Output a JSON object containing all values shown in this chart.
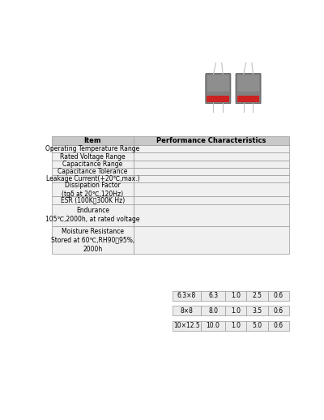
{
  "bg_color": "#ffffff",
  "table_header": [
    "Item",
    "Performance Characteristics"
  ],
  "table_rows": [
    "Operating Temperature Range",
    "Rated Voltage Range",
    "Capacitance Range",
    "Capacitance Tolerance",
    "Leakage Current(+20℃,max.)",
    "Dissipation Factor\n(tgδ at 20℃,120Hz)",
    "ESR (100K～300K Hz)",
    "Endurance\n105℃,2000h, at rated voltage",
    "Moisture Resistance\nStored at 60℃,RH90～95%,\n2000h"
  ],
  "small_table_rows": [
    [
      "6.3×8",
      "6.3",
      "1.0",
      "2.5",
      "0.6"
    ],
    [
      "8×8",
      "8.0",
      "1.0",
      "3.5",
      "0.6"
    ],
    [
      "10×12.5",
      "10.0",
      "1.0",
      "5.0",
      "0.6"
    ]
  ],
  "header_color": "#c8c8c8",
  "row_color": "#f0f0f0",
  "border_color": "#999999",
  "text_color": "#000000",
  "cap_body_color": "#808080",
  "cap_stripe_color": "#cc2222",
  "cap_lead_color": "#c0c0c0"
}
